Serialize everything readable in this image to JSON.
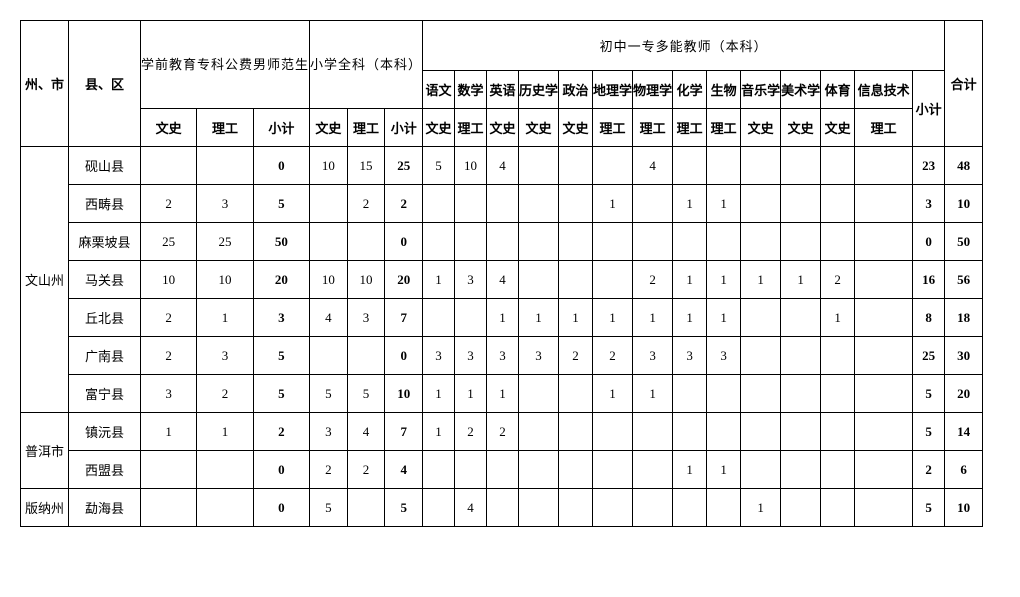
{
  "headers": {
    "region": "州、市",
    "county": "县、区",
    "preschool_group": "学前教育专科公费男师范生",
    "primary_group": "小学全科（本科）",
    "middle_group": "初中一专多能教师（本科）",
    "total": "合计",
    "wenshi": "文史",
    "ligong": "理工",
    "xiaoji": "小计",
    "wenshi_v": "文史",
    "ligong_v": "理工",
    "xiaoji_v": "小计",
    "yuwen": "语文",
    "shuxue": "数学",
    "yingyu": "英语",
    "lishixue": "历史学",
    "zhengzhi": "政治",
    "dilixue": "地理学",
    "wulixue": "物理学",
    "huaxue": "化学",
    "shengwu": "生物",
    "yinyuexue": "音乐学",
    "meishuxue": "美术学",
    "tiyu": "体育",
    "xinxijishu": "信息技术"
  },
  "regions": {
    "wenshan": "文山州",
    "puer": "普洱市",
    "banna": "版纳州"
  },
  "rows": [
    {
      "county": "砚山县",
      "c": [
        "",
        "",
        "0",
        "10",
        "15",
        "25",
        "5",
        "10",
        "4",
        "",
        "",
        "",
        "4",
        "",
        "",
        "",
        "",
        "",
        "",
        "23",
        "48"
      ]
    },
    {
      "county": "西畴县",
      "c": [
        "2",
        "3",
        "5",
        "",
        "2",
        "2",
        "",
        "",
        "",
        "",
        "",
        "1",
        "",
        "1",
        "1",
        "",
        "",
        "",
        "",
        "3",
        "10"
      ]
    },
    {
      "county": "麻栗坡县",
      "c": [
        "25",
        "25",
        "50",
        "",
        "",
        "0",
        "",
        "",
        "",
        "",
        "",
        "",
        "",
        "",
        "",
        "",
        "",
        "",
        "",
        "0",
        "50"
      ]
    },
    {
      "county": "马关县",
      "c": [
        "10",
        "10",
        "20",
        "10",
        "10",
        "20",
        "1",
        "3",
        "4",
        "",
        "",
        "",
        "2",
        "1",
        "1",
        "1",
        "1",
        "2",
        "",
        "16",
        "56"
      ]
    },
    {
      "county": "丘北县",
      "c": [
        "2",
        "1",
        "3",
        "4",
        "3",
        "7",
        "",
        "",
        "1",
        "1",
        "1",
        "1",
        "1",
        "1",
        "1",
        "",
        "",
        "1",
        "",
        "8",
        "18"
      ]
    },
    {
      "county": "广南县",
      "c": [
        "2",
        "3",
        "5",
        "",
        "",
        "0",
        "3",
        "3",
        "3",
        "3",
        "2",
        "2",
        "3",
        "3",
        "3",
        "",
        "",
        "",
        "",
        "25",
        "30"
      ]
    },
    {
      "county": "富宁县",
      "c": [
        "3",
        "2",
        "5",
        "5",
        "5",
        "10",
        "1",
        "1",
        "1",
        "",
        "",
        "1",
        "1",
        "",
        "",
        "",
        "",
        "",
        "",
        "5",
        "20"
      ]
    },
    {
      "county": "镇沅县",
      "c": [
        "1",
        "1",
        "2",
        "3",
        "4",
        "7",
        "1",
        "2",
        "2",
        "",
        "",
        "",
        "",
        "",
        "",
        "",
        "",
        "",
        "",
        "5",
        "14"
      ]
    },
    {
      "county": "西盟县",
      "c": [
        "",
        "",
        "0",
        "2",
        "2",
        "4",
        "",
        "",
        "",
        "",
        "",
        "",
        "",
        "1",
        "1",
        "",
        "",
        "",
        "",
        "2",
        "6"
      ]
    },
    {
      "county": "勐海县",
      "c": [
        "",
        "",
        "0",
        "5",
        "",
        "5",
        "",
        "4",
        "",
        "",
        "",
        "",
        "",
        "",
        "",
        "1",
        "",
        "",
        "",
        "5",
        "10"
      ]
    }
  ],
  "bold_cols": [
    2,
    5,
    19
  ]
}
